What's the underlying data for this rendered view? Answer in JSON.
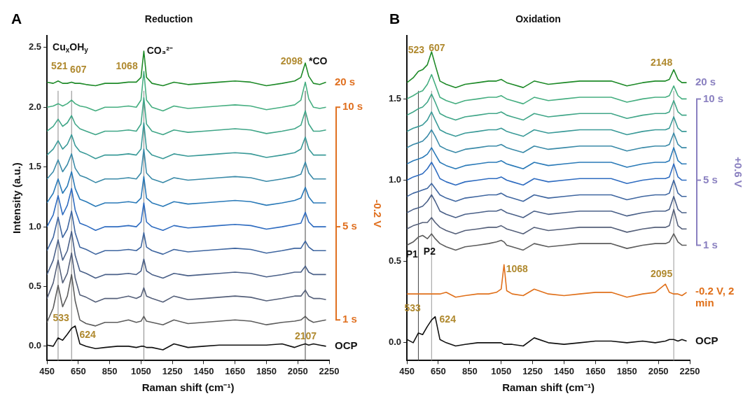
{
  "chart_data": [
    {
      "type": "line",
      "title": "Reduction",
      "xlabel": "Raman shift (cm⁻¹)",
      "ylabel": "Intensity (a.u.)",
      "y2label": "-0.2 V",
      "xlim": [
        450,
        2250
      ],
      "ylim": [
        -0.12,
        2.6
      ],
      "xticks": [
        450,
        650,
        850,
        1050,
        1250,
        1450,
        1650,
        1850,
        2050,
        2250
      ],
      "yticks": [
        {
          "value": 0,
          "label": "0.0"
        },
        0.5,
        {
          "value": 1,
          "label": "1.0"
        },
        1.5,
        {
          "value": 2,
          "label": "2.0"
        },
        2.5
      ],
      "grid": false,
      "legend": false,
      "x": [
        450,
        490,
        521,
        550,
        580,
        607,
        630,
        660,
        700,
        760,
        820,
        900,
        970,
        1020,
        1050,
        1068,
        1085,
        1120,
        1190,
        1260,
        1350,
        1450,
        1550,
        1650,
        1750,
        1850,
        1950,
        2030,
        2070,
        2098,
        2120,
        2150,
        2190,
        2230
      ],
      "series": [
        {
          "name": "OCP",
          "color": "#111111",
          "values": [
            0.01,
            0,
            0.07,
            0.05,
            0.1,
            0.15,
            0.17,
            0.02,
            0,
            -0.02,
            -0.01,
            0,
            0,
            -0.01,
            0,
            0,
            -0.01,
            -0.01,
            -0.03,
            0.02,
            -0.01,
            0,
            0.01,
            0.01,
            0.01,
            0.01,
            0.02,
            -0.01,
            0.01,
            0.02,
            0.01,
            0.02,
            0.01,
            0
          ]
        },
        {
          "name": "1 s",
          "color": "#5c5c5c",
          "values": [
            0.2,
            0.32,
            0.51,
            0.33,
            0.42,
            0.6,
            0.38,
            0.22,
            0.19,
            0.17,
            0.2,
            0.2,
            0.22,
            0.2,
            0.21,
            0.25,
            0.21,
            0.2,
            0.18,
            0.22,
            0.19,
            0.2,
            0.21,
            0.22,
            0.21,
            0.18,
            0.2,
            0.21,
            0.22,
            0.25,
            0.22,
            0.2,
            0.21,
            0.22
          ]
        },
        {
          "color": "#55607a",
          "values": [
            0.4,
            0.53,
            0.72,
            0.53,
            0.61,
            0.78,
            0.57,
            0.43,
            0.41,
            0.37,
            0.4,
            0.4,
            0.42,
            0.4,
            0.42,
            0.49,
            0.42,
            0.4,
            0.37,
            0.42,
            0.39,
            0.4,
            0.41,
            0.42,
            0.41,
            0.38,
            0.4,
            0.42,
            0.42,
            0.47,
            0.42,
            0.4,
            0.4,
            0.39
          ]
        },
        {
          "color": "#4a6088",
          "values": [
            0.6,
            0.72,
            0.89,
            0.72,
            0.8,
            0.96,
            0.76,
            0.63,
            0.61,
            0.57,
            0.6,
            0.6,
            0.61,
            0.6,
            0.63,
            0.73,
            0.63,
            0.6,
            0.57,
            0.61,
            0.59,
            0.6,
            0.61,
            0.62,
            0.61,
            0.58,
            0.6,
            0.62,
            0.62,
            0.67,
            0.62,
            0.6,
            0.6,
            0.6
          ]
        },
        {
          "color": "#3f66a0",
          "values": [
            0.8,
            0.91,
            1.08,
            0.91,
            0.98,
            1.13,
            0.95,
            0.83,
            0.81,
            0.77,
            0.8,
            0.8,
            0.81,
            0.8,
            0.83,
            0.95,
            0.83,
            0.8,
            0.77,
            0.81,
            0.79,
            0.8,
            0.81,
            0.82,
            0.81,
            0.78,
            0.8,
            0.82,
            0.82,
            0.88,
            0.83,
            0.8,
            0.8,
            0.8
          ]
        },
        {
          "name": "5 s",
          "color": "#2f6cc0",
          "values": [
            1,
            1.1,
            1.26,
            1.1,
            1.18,
            1.32,
            1.14,
            1.03,
            1.01,
            0.97,
            1,
            1,
            1.01,
            1,
            1.04,
            1.2,
            1.04,
            1,
            0.97,
            1.01,
            0.99,
            1,
            1.01,
            1.02,
            1.01,
            0.98,
            1,
            1.02,
            1.03,
            1.12,
            1.04,
            1,
            1,
            1
          ]
        },
        {
          "color": "#2a7ab8",
          "values": [
            1.2,
            1.28,
            1.4,
            1.28,
            1.34,
            1.46,
            1.32,
            1.23,
            1.21,
            1.17,
            1.2,
            1.2,
            1.21,
            1.2,
            1.24,
            1.42,
            1.24,
            1.2,
            1.17,
            1.21,
            1.19,
            1.2,
            1.21,
            1.22,
            1.21,
            1.18,
            1.2,
            1.22,
            1.24,
            1.33,
            1.25,
            1.2,
            1.2,
            1.2
          ]
        },
        {
          "color": "#3a8aa8",
          "values": [
            1.4,
            1.46,
            1.56,
            1.46,
            1.52,
            1.61,
            1.49,
            1.43,
            1.41,
            1.37,
            1.4,
            1.4,
            1.41,
            1.4,
            1.45,
            1.65,
            1.45,
            1.4,
            1.37,
            1.41,
            1.39,
            1.4,
            1.41,
            1.42,
            1.41,
            1.38,
            1.4,
            1.42,
            1.44,
            1.54,
            1.45,
            1.4,
            1.4,
            1.4
          ]
        },
        {
          "color": "#3a9a98",
          "values": [
            1.6,
            1.65,
            1.72,
            1.65,
            1.69,
            1.77,
            1.68,
            1.63,
            1.61,
            1.57,
            1.6,
            1.6,
            1.61,
            1.6,
            1.65,
            1.87,
            1.65,
            1.6,
            1.57,
            1.61,
            1.59,
            1.6,
            1.61,
            1.62,
            1.61,
            1.58,
            1.6,
            1.62,
            1.65,
            1.75,
            1.65,
            1.6,
            1.6,
            1.6
          ]
        },
        {
          "color": "#40a688",
          "values": [
            1.8,
            1.84,
            1.9,
            1.84,
            1.87,
            1.93,
            1.86,
            1.82,
            1.8,
            1.77,
            1.8,
            1.8,
            1.81,
            1.8,
            1.86,
            2.08,
            1.86,
            1.8,
            1.77,
            1.81,
            1.79,
            1.8,
            1.81,
            1.82,
            1.81,
            1.78,
            1.8,
            1.82,
            1.85,
            1.97,
            1.86,
            1.8,
            1.8,
            1.81
          ]
        },
        {
          "name": "10 s",
          "color": "#45ae80",
          "values": [
            2,
            2.01,
            2.03,
            2.01,
            2.03,
            2.06,
            2.03,
            2.01,
            2,
            1.97,
            2,
            2,
            2.01,
            2,
            2.06,
            2.3,
            2.06,
            2,
            1.97,
            2.01,
            1.99,
            2,
            2.01,
            2.02,
            2.01,
            1.98,
            2,
            2.02,
            2.06,
            2.21,
            2.07,
            2,
            1.99,
            2
          ]
        },
        {
          "name": "20 s",
          "color": "#1e8a28",
          "values": [
            2.21,
            2.2,
            2.22,
            2.2,
            2.2,
            2.21,
            2.2,
            2.2,
            2.19,
            2.18,
            2.2,
            2.2,
            2.21,
            2.21,
            2.25,
            2.47,
            2.25,
            2.2,
            2.18,
            2.21,
            2.19,
            2.2,
            2.21,
            2.22,
            2.21,
            2.18,
            2.2,
            2.22,
            2.25,
            2.37,
            2.26,
            2.2,
            2.19,
            2.21
          ]
        }
      ],
      "ref_lines": [
        {
          "axis": "x",
          "value": 521,
          "color": "#888888"
        },
        {
          "axis": "x",
          "value": 607,
          "color": "#888888"
        },
        {
          "axis": "x",
          "value": 1068,
          "color": "#888888"
        },
        {
          "axis": "x",
          "value": 2098,
          "color": "#444444"
        }
      ],
      "annotations": [
        "A",
        "Cu$_{x}$OH$_{y}$",
        "521",
        "607",
        "1068",
        "CO₃²⁻",
        "2098",
        "*CO",
        "533",
        "624",
        "2107"
      ]
    },
    {
      "type": "line",
      "title": "Oxidation",
      "xlabel": "Raman shift (cm⁻¹)",
      "y2label": "+0.6 V",
      "xlim": [
        450,
        2250
      ],
      "ylim": [
        -0.11,
        1.89
      ],
      "xticks": [
        450,
        650,
        850,
        1050,
        1250,
        1450,
        1650,
        1850,
        2050,
        2250
      ],
      "yticks": [
        {
          "value": 0,
          "label": "0.0"
        },
        0.5,
        {
          "value": 1,
          "label": "1.0"
        },
        1.5
      ],
      "grid": false,
      "legend": false,
      "x": [
        450,
        490,
        523,
        550,
        580,
        607,
        630,
        660,
        700,
        760,
        820,
        900,
        970,
        1020,
        1050,
        1068,
        1085,
        1120,
        1190,
        1260,
        1350,
        1450,
        1550,
        1650,
        1750,
        1850,
        1950,
        2030,
        2095,
        2120,
        2148,
        2175,
        2200,
        2230
      ],
      "series": [
        {
          "name": "OCP",
          "color": "#111111",
          "values": [
            0.02,
            0,
            0.06,
            0.05,
            0.1,
            0.14,
            0.16,
            0.02,
            0,
            -0.02,
            -0.01,
            0,
            0,
            0,
            0,
            -0.01,
            -0.01,
            -0.01,
            -0.02,
            0.03,
            0,
            -0.01,
            0,
            0.01,
            0.01,
            0,
            0.01,
            0,
            0.01,
            0.02,
            0.02,
            0.01,
            0.02,
            0.01
          ]
        },
        {
          "name": "1 s",
          "color": "#5c5c5c",
          "values": [
            0.6,
            0.62,
            0.65,
            0.66,
            0.64,
            0.67,
            0.64,
            0.61,
            0.59,
            0.57,
            0.59,
            0.6,
            0.61,
            0.62,
            0.63,
            0.62,
            0.6,
            0.59,
            0.57,
            0.61,
            0.59,
            0.6,
            0.61,
            0.61,
            0.61,
            0.58,
            0.6,
            0.61,
            0.61,
            0.62,
            0.67,
            0.62,
            0.6,
            0.6
          ]
        },
        {
          "color": "#55607a",
          "values": [
            0.7,
            0.72,
            0.73,
            0.74,
            0.74,
            0.77,
            0.74,
            0.71,
            0.69,
            0.67,
            0.69,
            0.7,
            0.71,
            0.71,
            0.72,
            0.71,
            0.7,
            0.69,
            0.67,
            0.71,
            0.69,
            0.7,
            0.71,
            0.71,
            0.71,
            0.68,
            0.7,
            0.71,
            0.71,
            0.72,
            0.82,
            0.72,
            0.7,
            0.7
          ]
        },
        {
          "color": "#4a6088",
          "values": [
            0.8,
            0.82,
            0.83,
            0.84,
            0.87,
            0.91,
            0.87,
            0.81,
            0.79,
            0.77,
            0.79,
            0.8,
            0.81,
            0.81,
            0.82,
            0.81,
            0.8,
            0.79,
            0.77,
            0.81,
            0.79,
            0.8,
            0.81,
            0.81,
            0.81,
            0.78,
            0.8,
            0.81,
            0.81,
            0.82,
            0.9,
            0.82,
            0.8,
            0.8
          ]
        },
        {
          "color": "#3f66a0",
          "values": [
            0.9,
            0.92,
            0.93,
            0.94,
            0.95,
            0.98,
            0.95,
            0.91,
            0.89,
            0.87,
            0.89,
            0.9,
            0.91,
            0.91,
            0.92,
            0.91,
            0.9,
            0.89,
            0.87,
            0.91,
            0.89,
            0.9,
            0.91,
            0.91,
            0.91,
            0.88,
            0.9,
            0.91,
            0.91,
            0.92,
            1,
            0.92,
            0.9,
            0.9
          ]
        },
        {
          "name": "5 s",
          "color": "#2f6cc0",
          "values": [
            1,
            1.02,
            1.03,
            1.04,
            1.07,
            1.11,
            1.07,
            1.01,
            0.99,
            0.97,
            0.99,
            1,
            1.01,
            1.01,
            1.02,
            1.01,
            1,
            0.99,
            0.97,
            1.01,
            0.99,
            1,
            1.01,
            1.01,
            1.01,
            0.98,
            1,
            1.01,
            1.01,
            1.02,
            1.1,
            1.02,
            1,
            1
          ]
        },
        {
          "color": "#2a7ab8",
          "values": [
            1.1,
            1.12,
            1.13,
            1.14,
            1.16,
            1.2,
            1.16,
            1.11,
            1.09,
            1.07,
            1.09,
            1.1,
            1.11,
            1.11,
            1.12,
            1.11,
            1.1,
            1.09,
            1.07,
            1.11,
            1.09,
            1.1,
            1.11,
            1.11,
            1.11,
            1.08,
            1.1,
            1.11,
            1.11,
            1.12,
            1.2,
            1.12,
            1.1,
            1.1
          ]
        },
        {
          "color": "#3a8aa8",
          "values": [
            1.2,
            1.22,
            1.23,
            1.24,
            1.27,
            1.31,
            1.27,
            1.21,
            1.19,
            1.17,
            1.19,
            1.2,
            1.21,
            1.21,
            1.22,
            1.21,
            1.2,
            1.19,
            1.17,
            1.21,
            1.19,
            1.2,
            1.21,
            1.21,
            1.21,
            1.18,
            1.2,
            1.21,
            1.21,
            1.22,
            1.29,
            1.22,
            1.2,
            1.2
          ]
        },
        {
          "color": "#3a9a98",
          "values": [
            1.3,
            1.32,
            1.33,
            1.34,
            1.37,
            1.42,
            1.37,
            1.31,
            1.29,
            1.27,
            1.29,
            1.3,
            1.31,
            1.31,
            1.32,
            1.31,
            1.3,
            1.29,
            1.27,
            1.31,
            1.29,
            1.3,
            1.31,
            1.31,
            1.31,
            1.28,
            1.3,
            1.31,
            1.31,
            1.32,
            1.39,
            1.32,
            1.3,
            1.3
          ]
        },
        {
          "color": "#40a688",
          "values": [
            1.4,
            1.42,
            1.44,
            1.45,
            1.48,
            1.53,
            1.48,
            1.41,
            1.39,
            1.37,
            1.39,
            1.4,
            1.41,
            1.41,
            1.42,
            1.41,
            1.4,
            1.39,
            1.37,
            1.41,
            1.39,
            1.4,
            1.41,
            1.41,
            1.41,
            1.38,
            1.4,
            1.41,
            1.41,
            1.42,
            1.49,
            1.42,
            1.4,
            1.4
          ]
        },
        {
          "name": "10 s",
          "color": "#45ae80",
          "values": [
            1.5,
            1.52,
            1.54,
            1.55,
            1.59,
            1.65,
            1.59,
            1.51,
            1.49,
            1.47,
            1.49,
            1.5,
            1.51,
            1.51,
            1.52,
            1.51,
            1.5,
            1.49,
            1.47,
            1.51,
            1.49,
            1.5,
            1.51,
            1.51,
            1.51,
            1.48,
            1.5,
            1.51,
            1.51,
            1.52,
            1.58,
            1.52,
            1.5,
            1.5
          ]
        },
        {
          "name": "20 s",
          "color": "#1e8a28",
          "values": [
            1.6,
            1.63,
            1.67,
            1.68,
            1.71,
            1.79,
            1.71,
            1.61,
            1.59,
            1.57,
            1.59,
            1.6,
            1.61,
            1.61,
            1.62,
            1.61,
            1.6,
            1.59,
            1.57,
            1.61,
            1.59,
            1.6,
            1.61,
            1.61,
            1.61,
            1.58,
            1.6,
            1.61,
            1.61,
            1.62,
            1.68,
            1.62,
            1.6,
            1.6
          ]
        },
        {
          "name": "-0.2 V, 2 min",
          "color": "#e0701a",
          "values": [
            0.3,
            0.3,
            0.3,
            0.3,
            0.3,
            0.3,
            0.3,
            0.3,
            0.31,
            0.28,
            0.29,
            0.3,
            0.3,
            0.31,
            0.33,
            0.48,
            0.32,
            0.3,
            0.29,
            0.33,
            0.3,
            0.29,
            0.3,
            0.31,
            0.31,
            0.28,
            0.3,
            0.31,
            0.36,
            0.31,
            0.3,
            0.3,
            0.29,
            0.31
          ]
        }
      ],
      "ref_lines": [
        {
          "axis": "x",
          "value": 523,
          "color": "#444444"
        },
        {
          "axis": "x",
          "value": 607,
          "color": "#999999"
        },
        {
          "axis": "x",
          "value": 2148,
          "color": "#999999"
        }
      ],
      "annotations": [
        "B",
        "523",
        "607",
        "2148",
        "P1",
        "P2",
        "1068",
        "2095",
        "533",
        "624"
      ]
    }
  ]
}
